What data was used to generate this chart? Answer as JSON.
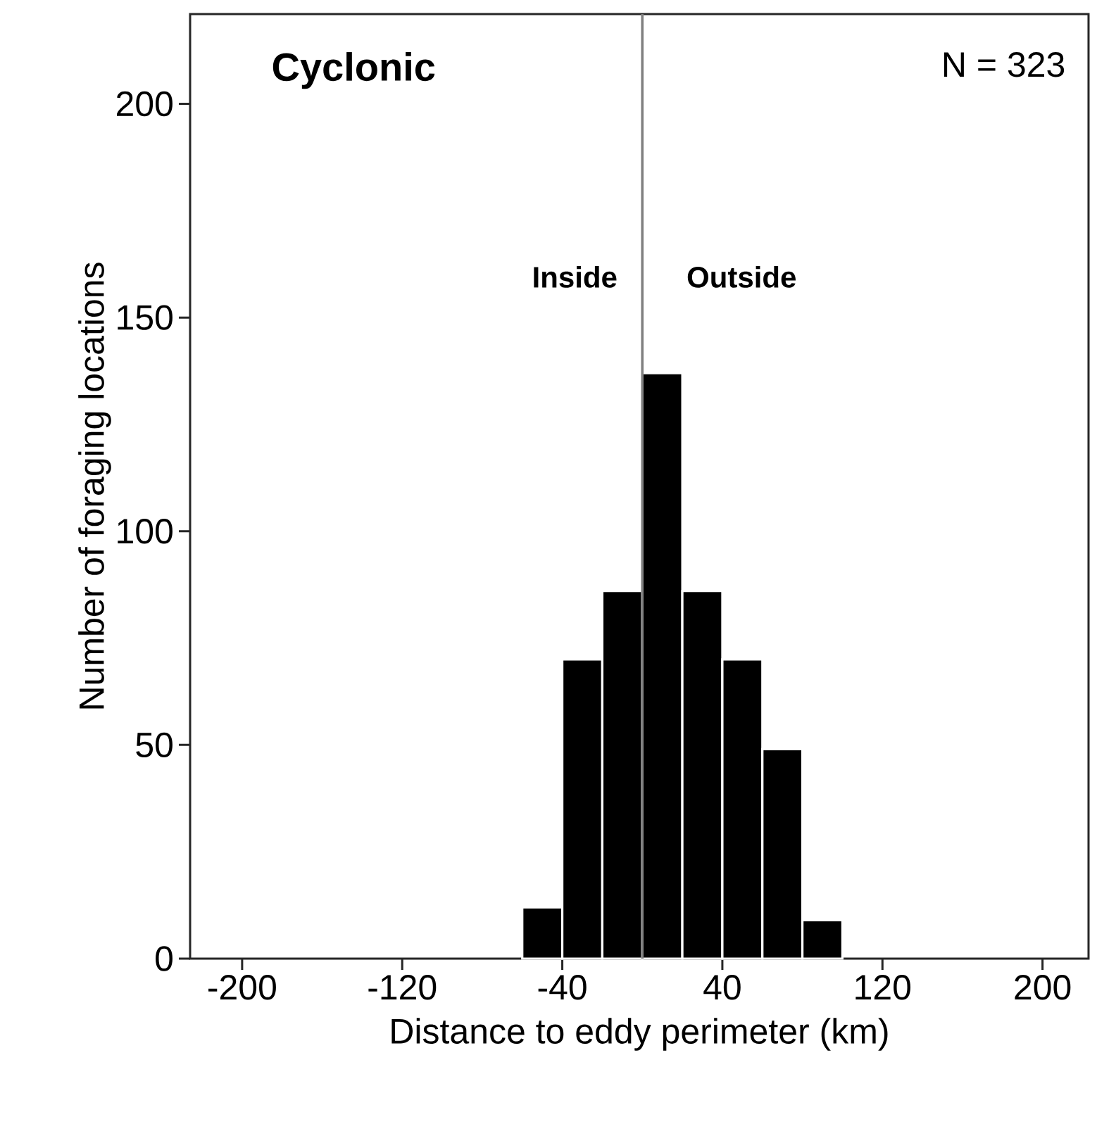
{
  "chart_data": {
    "type": "histogram",
    "xlabel": "Distance to eddy perimeter (km)",
    "ylabel": "Number of foraging locations",
    "bins": [
      -60,
      -40,
      -20,
      0,
      20,
      40,
      60,
      80,
      100
    ],
    "values": [
      12,
      70,
      86,
      137,
      86,
      70,
      49,
      9
    ],
    "color": "#000000",
    "xlim": [
      -226,
      223
    ],
    "ylim": [
      0,
      221
    ],
    "xticks": [
      -200,
      -120,
      -40,
      40,
      120,
      200
    ],
    "yticks": [
      0,
      50,
      100,
      150,
      200
    ],
    "ref_lines": [
      {
        "axis": "x",
        "value": 0,
        "color": "#808080"
      }
    ],
    "annotations": [
      "Cyclonic",
      "N = 323",
      "Inside",
      "Outside"
    ]
  }
}
